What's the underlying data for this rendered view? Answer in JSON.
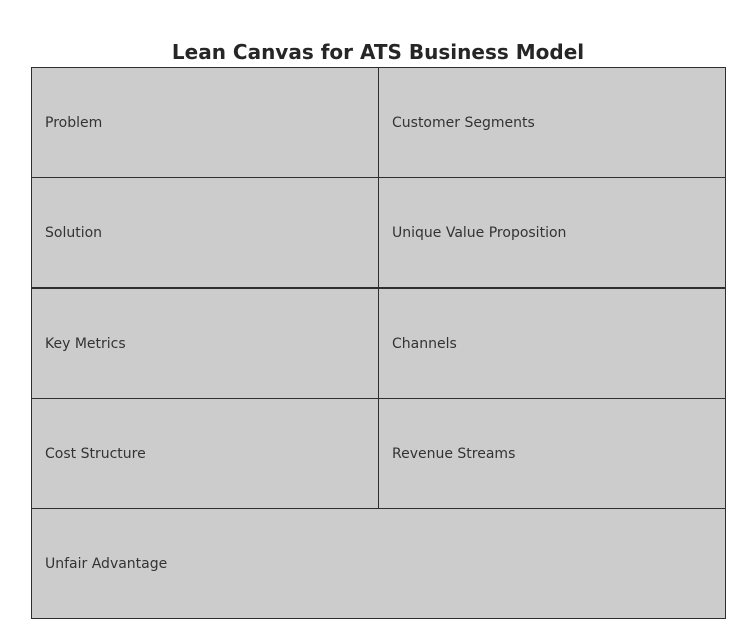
{
  "title": "Lean Canvas for ATS Business Model",
  "colors": {
    "cell_fill": "#cccccc",
    "cell_border": "#2e2e2e",
    "text": "#333333"
  },
  "blocks": {
    "problem": "Problem",
    "customer_segments": "Customer Segments",
    "solution": "Solution",
    "unique_value_proposition": "Unique Value Proposition",
    "key_metrics": "Key Metrics",
    "channels": "Channels",
    "cost_structure": "Cost Structure",
    "revenue_streams": "Revenue Streams",
    "unfair_advantage": "Unfair Advantage"
  }
}
